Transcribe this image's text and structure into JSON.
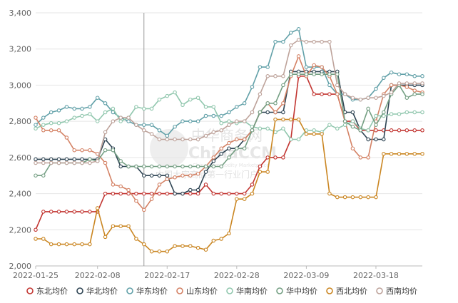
{
  "watermark": {
    "brand_cn": "中华商务网",
    "brand_en": "ChinaCCM",
    "brand_en_sub": "China Commodity Marketplace",
    "slogan": "中国大宗商品第一行业门户"
  },
  "chart_data": {
    "type": "line",
    "grid": true,
    "legend_position": "bottom",
    "ylim": [
      2000,
      3400
    ],
    "y_ticks": [
      "2,000",
      "2,200",
      "2,400",
      "2,600",
      "2,800",
      "3,000",
      "3,200",
      "3,400"
    ],
    "x_tick_labels": [
      "2022-01-25",
      "2022-02-08",
      "2022-02-17",
      "2022-02-28",
      "2022-03-09",
      "2022-03-18"
    ],
    "x_tick_index": [
      0,
      8,
      17,
      26,
      35,
      44
    ],
    "crosshair_index": 14,
    "n_points": 51,
    "series": [
      {
        "name": "东北均价",
        "color": "#c23531",
        "values": [
          2200,
          2300,
          2300,
          2300,
          2300,
          2300,
          2300,
          2300,
          2300,
          2400,
          2400,
          2400,
          2400,
          2400,
          2400,
          2400,
          2400,
          2400,
          2400,
          2400,
          2400,
          2400,
          2450,
          2400,
          2400,
          2400,
          2400,
          2400,
          2450,
          2550,
          2600,
          2600,
          2600,
          2700,
          3050,
          3050,
          2950,
          2950,
          2950,
          2950,
          2800,
          2800,
          2750,
          2750,
          2750,
          2750,
          2750,
          2750,
          2750,
          2750,
          2750
        ]
      },
      {
        "name": "华北均价",
        "color": "#2f4554",
        "values": [
          2590,
          2590,
          2590,
          2590,
          2590,
          2590,
          2590,
          2590,
          2590,
          2700,
          2650,
          2550,
          2550,
          2550,
          2500,
          2500,
          2500,
          2500,
          2400,
          2400,
          2420,
          2420,
          2520,
          2580,
          2620,
          2650,
          2650,
          2700,
          2750,
          2850,
          2850,
          2850,
          2850,
          3075,
          3075,
          3075,
          3075,
          3075,
          3075,
          3075,
          2850,
          2850,
          2750,
          2700,
          2700,
          2700,
          3000,
          3000,
          3000,
          3000,
          3000
        ]
      },
      {
        "name": "华东均价",
        "color": "#61a0a8",
        "values": [
          2780,
          2820,
          2850,
          2860,
          2880,
          2870,
          2870,
          2880,
          2930,
          2900,
          2850,
          2820,
          2800,
          2780,
          2780,
          2780,
          2750,
          2720,
          2770,
          2800,
          2800,
          2800,
          2830,
          2830,
          2830,
          2850,
          2880,
          2900,
          2990,
          3100,
          3100,
          3240,
          3240,
          3290,
          3310,
          3100,
          3100,
          3100,
          3000,
          2950,
          2950,
          2920,
          2920,
          2930,
          2980,
          3040,
          3070,
          3060,
          3060,
          3050,
          3050
        ]
      },
      {
        "name": "山东均价",
        "color": "#d48265",
        "values": [
          2820,
          2750,
          2750,
          2750,
          2710,
          2640,
          2640,
          2640,
          2620,
          2570,
          2450,
          2440,
          2420,
          2360,
          2310,
          2370,
          2450,
          2480,
          2490,
          2500,
          2500,
          2510,
          2550,
          2600,
          2650,
          2680,
          2700,
          2700,
          2750,
          2850,
          2900,
          2850,
          2900,
          3050,
          3160,
          3050,
          3110,
          3100,
          3050,
          2950,
          2800,
          2650,
          2600,
          2600,
          2800,
          2950,
          3000,
          3000,
          2990,
          2970,
          2960
        ]
      },
      {
        "name": "华南均价",
        "color": "#91c7ae",
        "values": [
          2760,
          2780,
          2790,
          2790,
          2800,
          2820,
          2830,
          2840,
          2800,
          2850,
          2870,
          2800,
          2820,
          2880,
          2870,
          2870,
          2920,
          2940,
          2960,
          2890,
          2920,
          2930,
          2880,
          2880,
          2790,
          2800,
          2790,
          2800,
          2770,
          2760,
          2760,
          2740,
          2760,
          2700,
          2700,
          2750,
          2750,
          2740,
          2780,
          2760,
          2780,
          2800,
          2760,
          2750,
          2830,
          2830,
          2840,
          2840,
          2850,
          2850,
          2850
        ]
      },
      {
        "name": "华中均价",
        "color": "#749f83",
        "values": [
          2500,
          2500,
          2570,
          2570,
          2570,
          2570,
          2570,
          2590,
          2580,
          2640,
          2640,
          2580,
          2550,
          2550,
          2550,
          2550,
          2550,
          2550,
          2550,
          2550,
          2550,
          2550,
          2550,
          2550,
          2550,
          2600,
          2650,
          2650,
          2750,
          2850,
          2900,
          2900,
          3000,
          3060,
          3060,
          3060,
          3060,
          3060,
          3060,
          3060,
          2800,
          2770,
          2750,
          2870,
          2780,
          2850,
          2950,
          3000,
          2930,
          2950,
          2950
        ]
      },
      {
        "name": "西北均价",
        "color": "#ca8622",
        "values": [
          2150,
          2150,
          2120,
          2120,
          2120,
          2120,
          2120,
          2120,
          2320,
          2160,
          2220,
          2220,
          2220,
          2150,
          2120,
          2080,
          2080,
          2080,
          2110,
          2110,
          2110,
          2100,
          2090,
          2140,
          2150,
          2180,
          2370,
          2370,
          2400,
          2520,
          2520,
          2810,
          2810,
          2810,
          2810,
          2730,
          2730,
          2730,
          2400,
          2380,
          2380,
          2380,
          2380,
          2380,
          2380,
          2620,
          2620,
          2620,
          2620,
          2620,
          2620
        ]
      },
      {
        "name": "西南均价",
        "color": "#bda29a",
        "values": [
          2570,
          2570,
          2570,
          2570,
          2570,
          2570,
          2570,
          2570,
          2580,
          2740,
          2800,
          2820,
          2820,
          2780,
          2750,
          2730,
          2700,
          2700,
          2700,
          2700,
          2700,
          2700,
          2720,
          2740,
          2750,
          2780,
          2800,
          2800,
          2850,
          2950,
          3050,
          3050,
          3050,
          3220,
          3250,
          3240,
          3240,
          3240,
          3240,
          3000,
          2950,
          2930,
          2920,
          2930,
          2930,
          2940,
          2960,
          3010,
          3010,
          3010,
          3010
        ]
      }
    ]
  }
}
